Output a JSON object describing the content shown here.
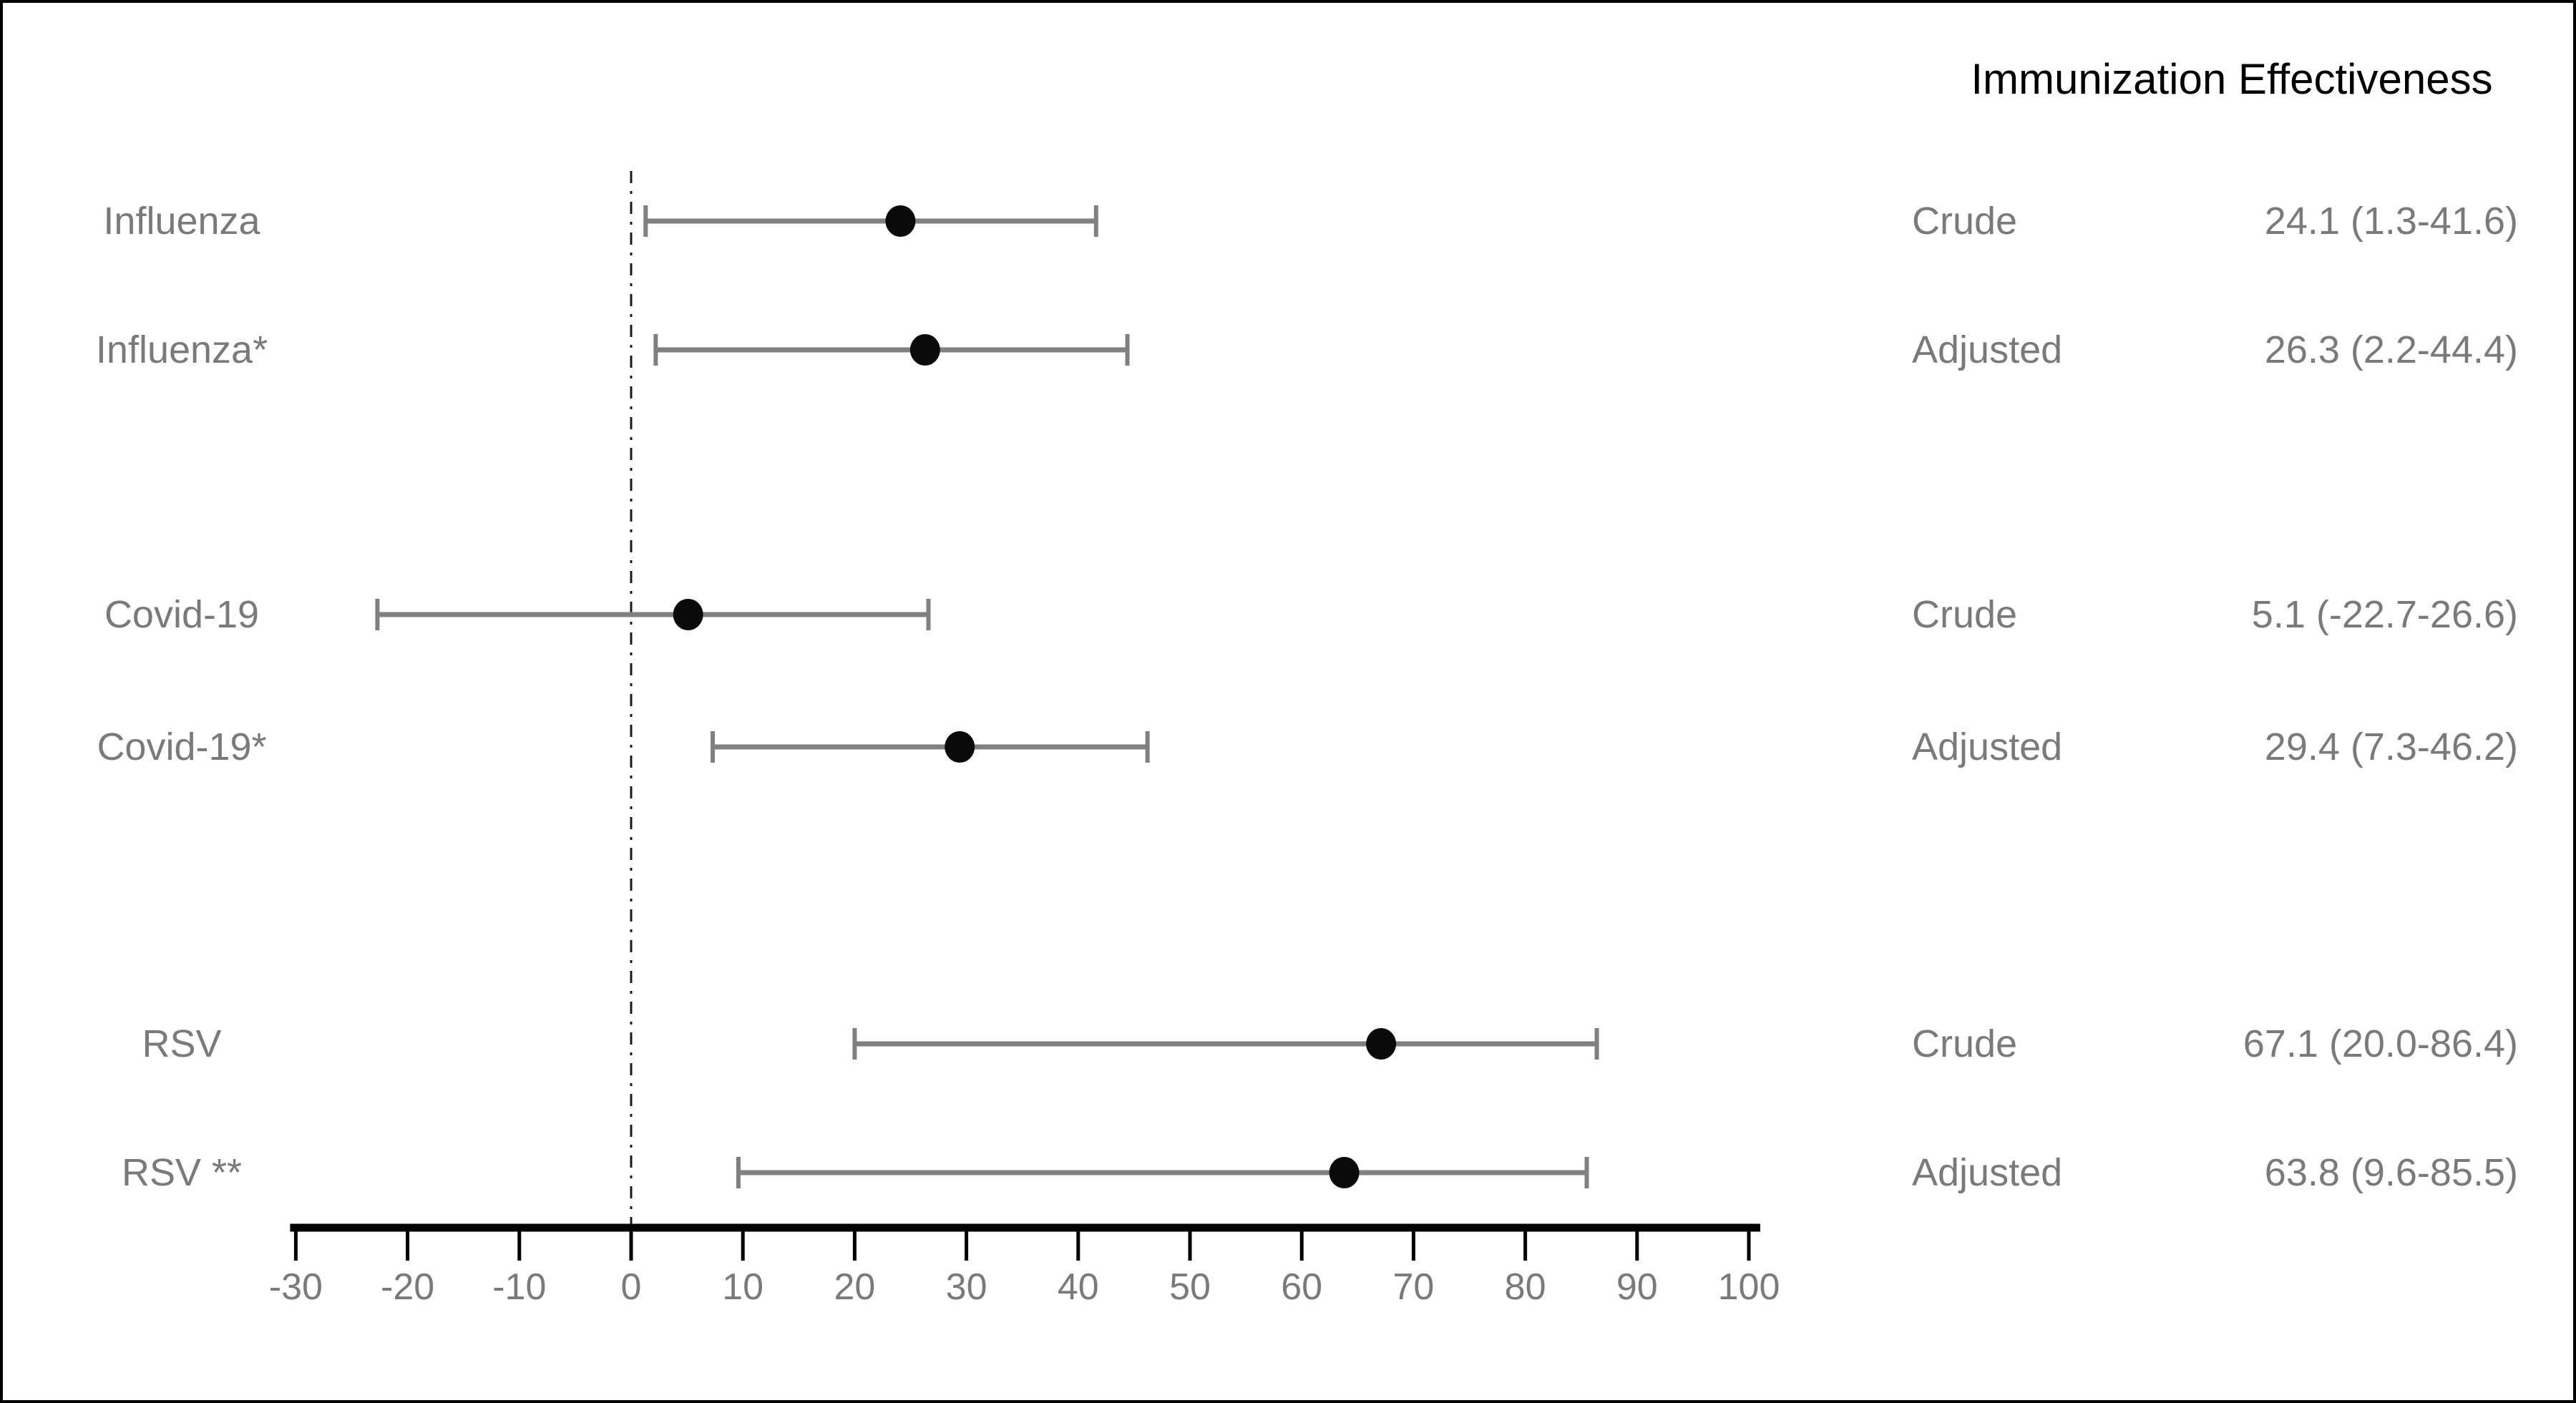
{
  "title": "Immunization Effectiveness",
  "colors": {
    "text_gray": "#7a7a7a",
    "error_bar_gray": "#808080",
    "marker_black": "#0a0a0a",
    "axis_black": "#000000",
    "reference_line_black": "#1a1a1a"
  },
  "chart_data": {
    "type": "scatter",
    "variant": "forest-plot",
    "title": "Immunization Effectiveness",
    "xlabel": "",
    "ylabel": "",
    "xlim": [
      -30,
      100
    ],
    "xticks": [
      -30,
      -20,
      -10,
      0,
      10,
      20,
      30,
      40,
      50,
      60,
      70,
      80,
      90,
      100
    ],
    "reference_line_x": 0,
    "grid": false,
    "legend_position": "none",
    "rows": [
      {
        "label": "Influenza",
        "estimate_type": "Crude",
        "estimate": 24.1,
        "ci_low": 1.3,
        "ci_high": 41.6,
        "value_text": "24.1 (1.3-41.6)"
      },
      {
        "label": "Influenza*",
        "estimate_type": "Adjusted",
        "estimate": 26.3,
        "ci_low": 2.2,
        "ci_high": 44.4,
        "value_text": "26.3 (2.2-44.4)"
      },
      {
        "label": "Covid-19",
        "estimate_type": "Crude",
        "estimate": 5.1,
        "ci_low": -22.7,
        "ci_high": 26.6,
        "value_text": "5.1 (-22.7-26.6)"
      },
      {
        "label": "Covid-19*",
        "estimate_type": "Adjusted",
        "estimate": 29.4,
        "ci_low": 7.3,
        "ci_high": 46.2,
        "value_text": "29.4 (7.3-46.2)"
      },
      {
        "label": "RSV",
        "estimate_type": "Crude",
        "estimate": 67.1,
        "ci_low": 20.0,
        "ci_high": 86.4,
        "value_text": "67.1 (20.0-86.4)"
      },
      {
        "label": "RSV **",
        "estimate_type": "Adjusted",
        "estimate": 63.8,
        "ci_low": 9.6,
        "ci_high": 85.5,
        "value_text": "63.8 (9.6-85.5)"
      }
    ]
  }
}
